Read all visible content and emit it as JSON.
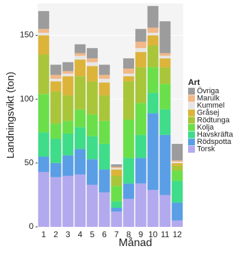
{
  "chart_data": {
    "type": "stacked-bar",
    "x_label": "Månad",
    "y_label": "Landningsvikt (ton)",
    "legend_title": "Art",
    "categories": [
      "1",
      "2",
      "3",
      "4",
      "5",
      "6",
      "7",
      "8",
      "9",
      "10",
      "11",
      "12"
    ],
    "series": [
      {
        "name": "Torsk",
        "color": "#b3a9ee",
        "values": [
          43,
          39,
          40,
          41,
          33,
          27,
          12,
          22,
          34,
          29,
          25,
          5
        ]
      },
      {
        "name": "Rödspotta",
        "color": "#5a9ee6",
        "values": [
          12,
          11,
          16,
          20,
          20,
          18,
          3,
          12,
          20,
          60,
          47,
          14
        ]
      },
      {
        "name": "Havskräfta",
        "color": "#3fdc8a",
        "values": [
          19,
          19,
          17,
          17,
          18,
          20,
          5,
          20,
          18,
          16,
          20,
          17
        ]
      },
      {
        "name": "Kolja",
        "color": "#6bdf4a",
        "values": [
          30,
          12,
          10,
          14,
          17,
          18,
          12,
          30,
          25,
          20,
          20,
          8
        ]
      },
      {
        "name": "Rödtunga",
        "color": "#a9c63a",
        "values": [
          31,
          25,
          20,
          26,
          26,
          20,
          8,
          30,
          28,
          17,
          13,
          4
        ]
      },
      {
        "name": "Gråsej",
        "color": "#dcb43a",
        "values": [
          15,
          8,
          15,
          13,
          12,
          10,
          5,
          4,
          12,
          8,
          7,
          2
        ]
      },
      {
        "name": "Kummel",
        "color": "#e6e6e6",
        "values": [
          2,
          2,
          2,
          3,
          3,
          3,
          1,
          2,
          3,
          2,
          2,
          1
        ]
      },
      {
        "name": "Marulk",
        "color": "#f2b888",
        "values": [
          3,
          3,
          2,
          2,
          3,
          3,
          1,
          4,
          5,
          4,
          2,
          1
        ]
      },
      {
        "name": "Övriga",
        "color": "#9c9c9c",
        "values": [
          14,
          8,
          7,
          7,
          8,
          8,
          2,
          8,
          10,
          17,
          25,
          13
        ]
      }
    ],
    "ylim": [
      0,
      175
    ],
    "yticks": [
      0,
      50,
      100,
      150
    ],
    "grid": true
  }
}
